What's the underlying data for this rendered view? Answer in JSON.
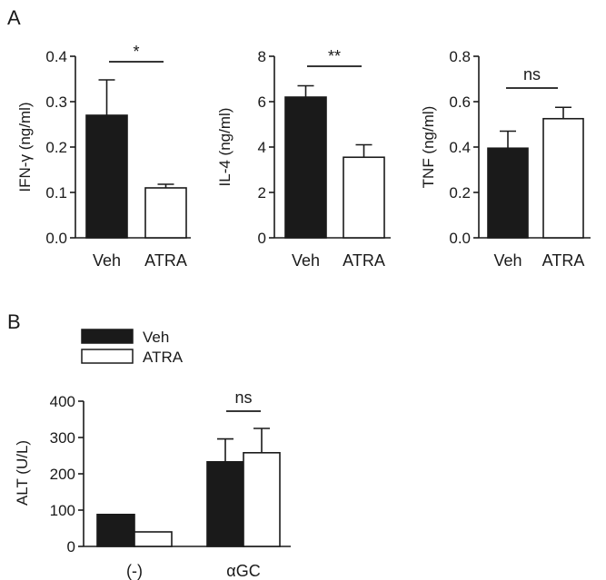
{
  "panel_labels": {
    "a": "A",
    "b": "B"
  },
  "colors": {
    "veh": "#1a1a1a",
    "atra": "#ffffff",
    "outline": "#1a1a1a"
  },
  "legend": {
    "items": [
      "Veh",
      "ATRA"
    ]
  },
  "chart_data": [
    {
      "type": "bar",
      "panel": "A",
      "ylabel": "IFN-γ (ng/ml)",
      "ylim": [
        0,
        0.4
      ],
      "yticks": [
        "0.0",
        "0.1",
        "0.2",
        "0.3",
        "0.4"
      ],
      "categories": [
        "Veh",
        "ATRA"
      ],
      "values": [
        0.27,
        0.11
      ],
      "errors": [
        0.078,
        0.008
      ],
      "fills": [
        "#1a1a1a",
        "#ffffff"
      ],
      "significance": "*"
    },
    {
      "type": "bar",
      "panel": "A",
      "ylabel": "IL-4 (ng/ml)",
      "ylim": [
        0,
        8
      ],
      "yticks": [
        "0",
        "2",
        "4",
        "6",
        "8"
      ],
      "categories": [
        "Veh",
        "ATRA"
      ],
      "values": [
        6.2,
        3.55
      ],
      "errors": [
        0.5,
        0.55
      ],
      "fills": [
        "#1a1a1a",
        "#ffffff"
      ],
      "significance": "**"
    },
    {
      "type": "bar",
      "panel": "A",
      "ylabel": "TNF (ng/ml)",
      "ylim": [
        0,
        0.8
      ],
      "yticks": [
        "0.0",
        "0.2",
        "0.4",
        "0.6",
        "0.8"
      ],
      "categories": [
        "Veh",
        "ATRA"
      ],
      "values": [
        0.395,
        0.525
      ],
      "errors": [
        0.075,
        0.05
      ],
      "fills": [
        "#1a1a1a",
        "#ffffff"
      ],
      "significance": "ns"
    },
    {
      "type": "bar",
      "panel": "B",
      "ylabel": "ALT (U/L)",
      "ylim": [
        0,
        400
      ],
      "yticks": [
        "0",
        "100",
        "200",
        "300",
        "400"
      ],
      "categories": [
        "(-)",
        "αGC"
      ],
      "series": [
        {
          "name": "Veh",
          "values": [
            88,
            233
          ],
          "errors": [
            0,
            63
          ]
        },
        {
          "name": "ATRA",
          "values": [
            40,
            258
          ],
          "errors": [
            0,
            67
          ]
        }
      ],
      "significance": "ns"
    }
  ]
}
